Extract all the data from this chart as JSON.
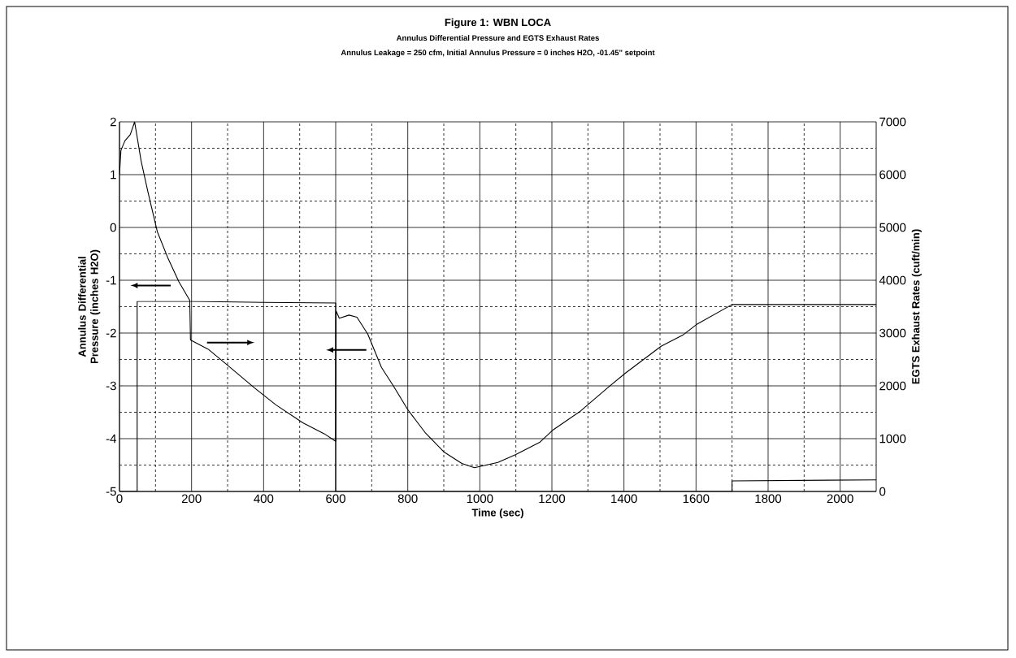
{
  "chart_data": {
    "type": "line",
    "title": "Figure 1: WBN LOCA",
    "subtitle": "Annulus Differential Pressure and EGTS Exhaust Rates",
    "annotations": [
      "Annulus Leakage = 250 cfm, Initial Annulus Pressure = 0 inches H2O, -01.45\" setpoint"
    ],
    "xlabel": "Time (sec)",
    "ylabel": "Annulus Differential Pressure (inches H2O)",
    "y2label": "EGTS Exhaust Rates (cuft/min)",
    "xlim": [
      0,
      2100
    ],
    "xticks": [
      0,
      200,
      400,
      600,
      800,
      1000,
      1200,
      1400,
      1600,
      1800,
      2000
    ],
    "ylim": [
      -5,
      2
    ],
    "yticks": [
      -5,
      -4,
      -3,
      -2,
      -1,
      0,
      1,
      2
    ],
    "y2lim": [
      0,
      7000
    ],
    "y2ticks": [
      0,
      1000,
      2000,
      3000,
      4000,
      5000,
      6000,
      7000
    ],
    "grid": true,
    "series": [
      {
        "color": "#000000",
        "x": [
          0,
          4,
          15,
          30,
          42,
          60,
          79,
          105,
          135,
          165,
          195,
          197,
          247,
          300,
          375,
          434,
          509,
          569,
          600,
          601,
          610,
          637,
          659,
          689,
          727,
          760,
          800,
          850,
          900,
          950,
          985,
          1050,
          1100,
          1166,
          1204,
          1279,
          1354,
          1402,
          1503,
          1563,
          1601,
          1700,
          2100
        ],
        "values": [
          1.0,
          1.46,
          1.64,
          1.76,
          2.0,
          1.26,
          0.67,
          -0.08,
          -0.59,
          -1.03,
          -1.38,
          -2.13,
          -2.31,
          -2.61,
          -3.04,
          -3.36,
          -3.7,
          -3.91,
          -4.05,
          -1.58,
          -1.72,
          -1.66,
          -1.7,
          -2.02,
          -2.65,
          -3.0,
          -3.45,
          -3.9,
          -4.25,
          -4.47,
          -4.55,
          -4.45,
          -4.3,
          -4.07,
          -3.83,
          -3.48,
          -3.04,
          -2.77,
          -2.25,
          -2.04,
          -1.84,
          -1.46,
          -1.46
        ]
      },
      {
        "color": "#000000",
        "axis": "y2",
        "x": [
          0,
          49,
          49,
          200,
          400,
          600,
          600,
          1700,
          1700,
          2100
        ],
        "values": [
          0,
          0,
          3600,
          3600,
          3580,
          3570,
          0,
          0,
          200,
          220
        ]
      }
    ]
  }
}
